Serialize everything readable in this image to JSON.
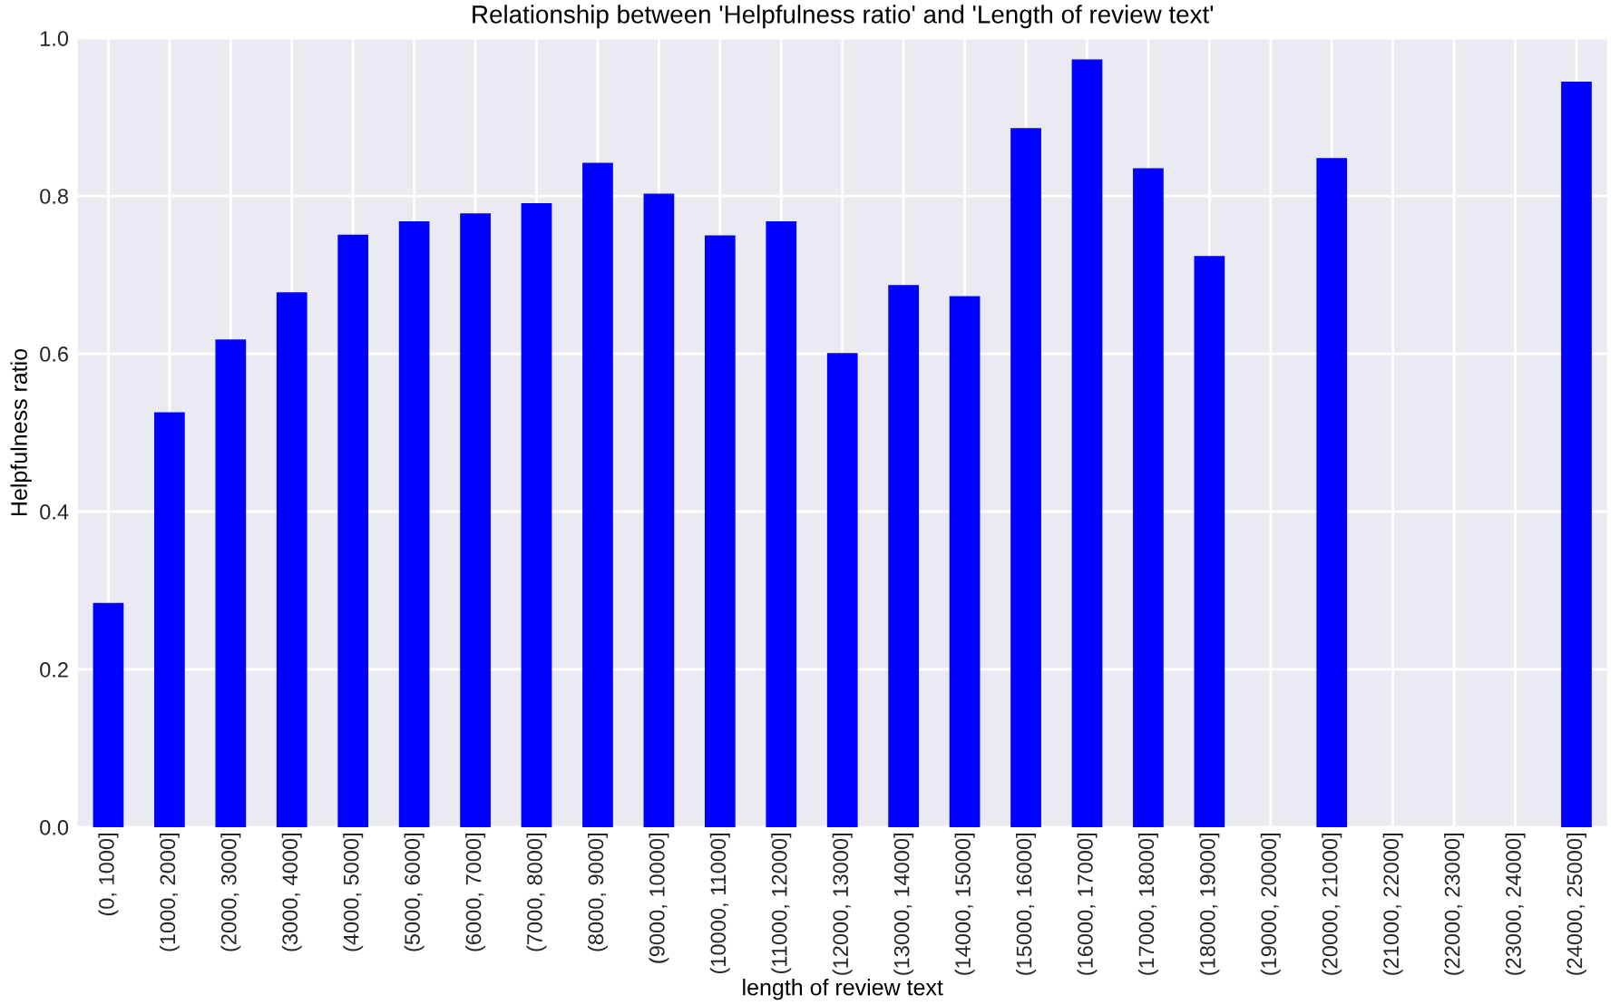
{
  "chart_data": {
    "type": "bar",
    "title": "Relationship between 'Helpfulness ratio' and 'Length of review text'",
    "xlabel": "length of review text",
    "ylabel": "Helpfulness ratio",
    "categories": [
      "(0, 1000]",
      "(1000, 2000]",
      "(2000, 3000]",
      "(3000, 4000]",
      "(4000, 5000]",
      "(5000, 6000]",
      "(6000, 7000]",
      "(7000, 8000]",
      "(8000, 9000]",
      "(9000, 10000]",
      "(10000, 11000]",
      "(11000, 12000]",
      "(12000, 13000]",
      "(13000, 14000]",
      "(14000, 15000]",
      "(15000, 16000]",
      "(16000, 17000]",
      "(17000, 18000]",
      "(18000, 19000]",
      "(19000, 20000]",
      "(20000, 21000]",
      "(21000, 22000]",
      "(22000, 23000]",
      "(23000, 24000]",
      "(24000, 25000]"
    ],
    "values": [
      0.284,
      0.526,
      0.618,
      0.678,
      0.751,
      0.768,
      0.778,
      0.791,
      0.842,
      0.803,
      0.75,
      0.768,
      0.601,
      0.687,
      0.673,
      0.886,
      0.973,
      0.835,
      0.724,
      null,
      0.848,
      null,
      null,
      null,
      0.945
    ],
    "color": "#0000ff",
    "ylim": [
      0,
      1.0
    ],
    "yticks": [
      {
        "value": 0,
        "label": "0.0"
      },
      0.2,
      0.4,
      0.6,
      0.8,
      {
        "value": 1.0,
        "label": "1.0"
      }
    ],
    "grid": true
  }
}
